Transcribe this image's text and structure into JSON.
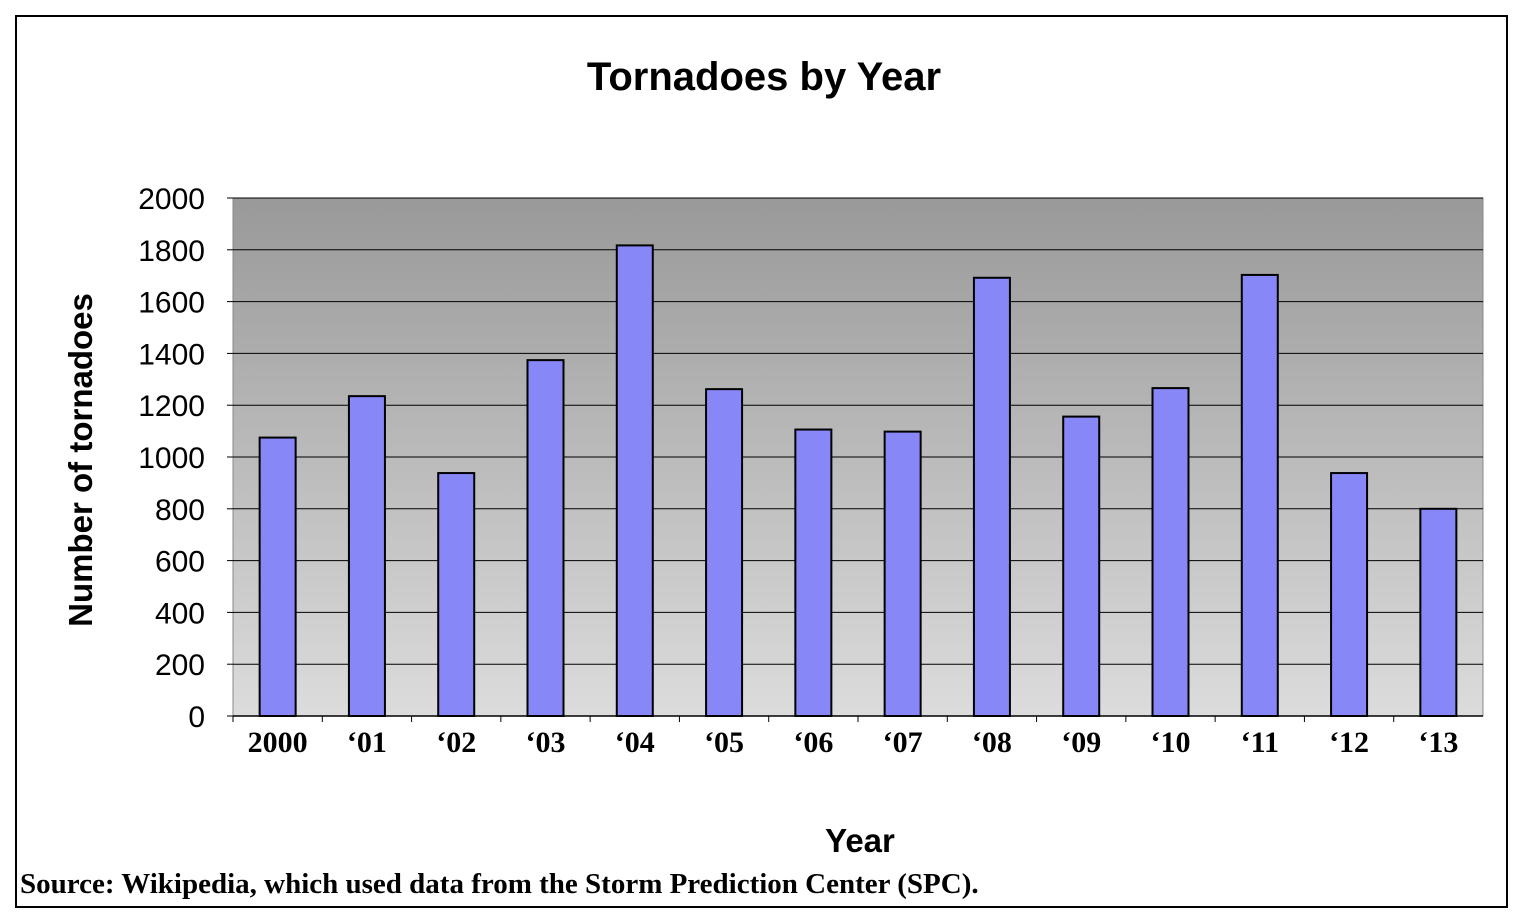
{
  "chart_data": {
    "type": "bar",
    "title": "Tornadoes by Year",
    "xlabel": "Year",
    "ylabel": "Number of tornadoes",
    "categories": [
      "2000",
      "‘01",
      "‘02",
      "‘03",
      "‘04",
      "‘05",
      "‘06",
      "‘07",
      "‘08",
      "‘09",
      "‘10",
      "‘11",
      "‘12",
      "‘13"
    ],
    "values": [
      1075,
      1235,
      938,
      1374,
      1817,
      1262,
      1106,
      1098,
      1692,
      1156,
      1266,
      1703,
      938,
      800
    ],
    "ylim": [
      0,
      2000
    ],
    "yticks": [
      0,
      200,
      400,
      600,
      800,
      1000,
      1200,
      1400,
      1600,
      1800,
      2000
    ],
    "grid": true,
    "legend": "none",
    "colors": {
      "bar": "#8787f7",
      "bg_top": "#999999",
      "bg_bottom": "#dcdcdc"
    }
  },
  "source": "Source: Wikipedia, which used data from the Storm Prediction Center (SPC)."
}
